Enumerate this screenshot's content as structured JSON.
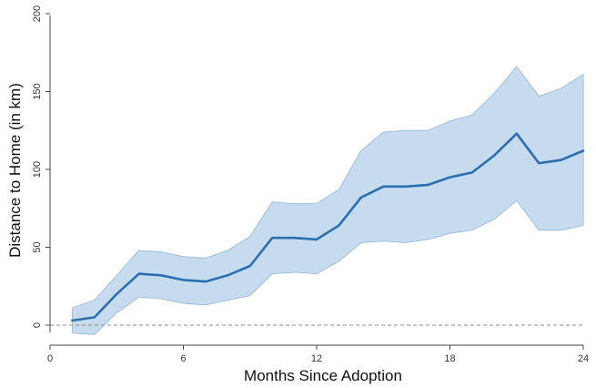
{
  "chart_data": {
    "type": "line",
    "title": "",
    "xlabel": "Months Since Adoption",
    "ylabel": "Distance to Home (in km)",
    "xlim": [
      0,
      24
    ],
    "ylim": [
      -10,
      200
    ],
    "xticks": [
      0,
      6,
      12,
      18,
      24
    ],
    "yticks": [
      0,
      50,
      100,
      150,
      200
    ],
    "grid": false,
    "legend": "none",
    "reference_line": {
      "y": 0,
      "style": "dashed",
      "color": "#888888"
    },
    "series": [
      {
        "x": [
          1,
          2,
          3,
          4,
          5,
          6,
          7,
          8,
          9,
          10,
          11,
          12,
          13,
          14,
          15,
          16,
          17,
          18,
          19,
          20,
          21,
          22,
          23,
          24
        ],
        "values": [
          3,
          5,
          20,
          33,
          32,
          29,
          28,
          32,
          38,
          56,
          56,
          55,
          64,
          82,
          89,
          89,
          90,
          95,
          98,
          109,
          123,
          104,
          106,
          112
        ],
        "lower": [
          -5,
          -6,
          8,
          18,
          17,
          14,
          13,
          16,
          19,
          33,
          34,
          33,
          41,
          53,
          54,
          53,
          55,
          59,
          61,
          68,
          80,
          61,
          61,
          64
        ],
        "upper": [
          11,
          16,
          32,
          48,
          47,
          44,
          43,
          48,
          57,
          79,
          78,
          78,
          87,
          112,
          124,
          125,
          125,
          131,
          135,
          149,
          166,
          147,
          152,
          161
        ],
        "line_color": "#2b6fb0",
        "band_color": "#c7dbee"
      }
    ]
  }
}
